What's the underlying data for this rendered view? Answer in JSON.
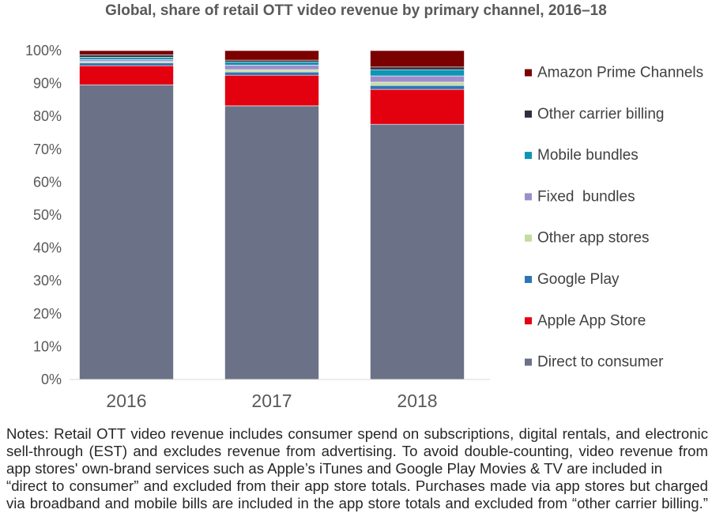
{
  "chart_data": {
    "type": "bar",
    "stacked": true,
    "title": "Global, share of retail OTT video revenue by primary channel, 2016–18",
    "xlabel": "",
    "ylabel": "",
    "categories": [
      "2016",
      "2017",
      "2018"
    ],
    "ylim": [
      0,
      100
    ],
    "yticks": [
      0,
      10,
      20,
      30,
      40,
      50,
      60,
      70,
      80,
      90,
      100
    ],
    "ytick_labels": [
      "0%",
      "10%",
      "20%",
      "30%",
      "40%",
      "50%",
      "60%",
      "70%",
      "80%",
      "90%",
      "100%"
    ],
    "unit": "%",
    "grid": false,
    "legend_position": "right",
    "series": [
      {
        "name": "Direct to consumer",
        "color": "#6b7287",
        "values": [
          89.6,
          83.2,
          77.6
        ]
      },
      {
        "name": "Apple App Store",
        "color": "#e3000f",
        "values": [
          5.8,
          9.3,
          10.6
        ]
      },
      {
        "name": "Google Play",
        "color": "#2e75b6",
        "values": [
          0.9,
          1.0,
          1.2
        ]
      },
      {
        "name": "Other app stores",
        "color": "#c5dca0",
        "values": [
          0.4,
          0.7,
          1.0
        ]
      },
      {
        "name": "Fixed  bundles",
        "color": "#9c8fc9",
        "values": [
          0.6,
          1.4,
          1.9
        ]
      },
      {
        "name": "Mobile bundles",
        "color": "#0e95b5",
        "values": [
          0.7,
          0.9,
          1.9
        ]
      },
      {
        "name": "Other carrier billing",
        "color": "#2b2f3f",
        "values": [
          0.7,
          0.6,
          0.8
        ]
      },
      {
        "name": "Amazon Prime Channels",
        "color": "#7b0000",
        "values": [
          1.3,
          2.9,
          5.0
        ]
      }
    ]
  },
  "notes": {
    "lines": [
      "Notes: Retail OTT video revenue includes consumer spend on subscriptions, digital rentals, and electronic",
      "sell-through (EST) and excludes revenue from advertising. To avoid double-counting, video revenue from",
      "app stores' own-brand services such as Apple’s iTunes and Google Play Movies & TV are included in",
      "“direct to consumer” and excluded from their app store totals. Purchases made via app stores but charged",
      "via broadband and mobile bills are included in the app store totals and excluded from “other carrier billing.”"
    ]
  }
}
